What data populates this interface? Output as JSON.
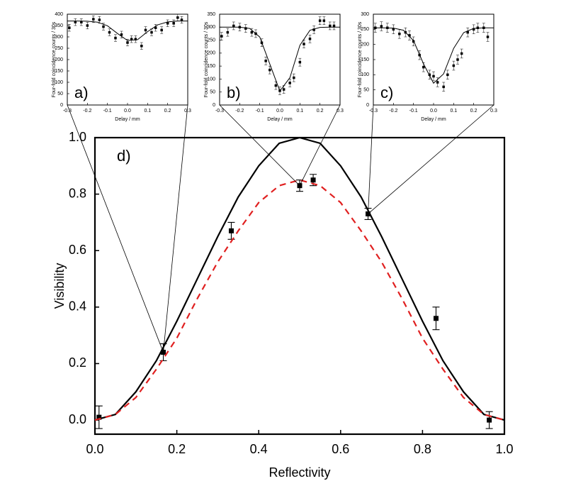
{
  "chart_data": [
    {
      "type": "scatter",
      "annotation": "d)",
      "x_label": "Reflectivity",
      "y_label": "Visibility",
      "xlim": [
        0,
        1
      ],
      "ylim": [
        -0.05,
        1
      ],
      "xticks": [
        {
          "value": 0,
          "label": "0.0"
        },
        0.2,
        0.4,
        0.6,
        0.8,
        {
          "value": 1,
          "label": "1.0"
        }
      ],
      "yticks": [
        {
          "value": 0,
          "label": "0.0"
        },
        0.2,
        0.4,
        0.6,
        0.8,
        {
          "value": 1,
          "label": "1.0"
        }
      ],
      "series": [
        {
          "type": "scatter",
          "color": "#000000",
          "x": [
            0.01,
            0.167,
            0.333,
            0.5,
            0.533,
            0.667,
            0.833,
            0.963
          ],
          "values": [
            0.01,
            0.24,
            0.67,
            0.83,
            0.85,
            0.73,
            0.36,
            0.0
          ],
          "errors": [
            0.04,
            0.03,
            0.03,
            0.02,
            0.02,
            0.02,
            0.04,
            0.03
          ]
        },
        {
          "type": "line",
          "color": "#000000",
          "x": [
            0,
            0.05,
            0.1,
            0.15,
            0.2,
            0.25,
            0.3,
            0.35,
            0.4,
            0.45,
            0.5,
            0.55,
            0.6,
            0.65,
            0.7,
            0.75,
            0.8,
            0.85,
            0.9,
            0.95,
            1
          ],
          "values": [
            0,
            0.02,
            0.1,
            0.21,
            0.35,
            0.5,
            0.65,
            0.79,
            0.9,
            0.98,
            1,
            0.98,
            0.9,
            0.79,
            0.65,
            0.5,
            0.35,
            0.21,
            0.1,
            0.02,
            0
          ]
        },
        {
          "type": "line",
          "color": "#e02020",
          "dash": true,
          "x": [
            0,
            0.05,
            0.1,
            0.15,
            0.2,
            0.25,
            0.3,
            0.35,
            0.4,
            0.45,
            0.5,
            0.55,
            0.6,
            0.65,
            0.7,
            0.75,
            0.8,
            0.85,
            0.9,
            0.95,
            1
          ],
          "values": [
            0,
            0.02,
            0.08,
            0.18,
            0.29,
            0.43,
            0.56,
            0.67,
            0.77,
            0.83,
            0.85,
            0.83,
            0.77,
            0.67,
            0.56,
            0.43,
            0.29,
            0.18,
            0.08,
            0.02,
            0
          ]
        }
      ]
    },
    {
      "type": "scatter",
      "annotation": "a)",
      "x_label": "Delay / mm",
      "y_label": "Four-fold coincidence counts / 30s",
      "xlim": [
        -0.3,
        0.3
      ],
      "ylim": [
        0,
        400
      ],
      "xticks": [
        -0.3,
        -0.2,
        -0.1,
        {
          "value": 0,
          "label": "0.0"
        },
        0.1,
        0.2,
        0.3
      ],
      "yticks": [
        0,
        50,
        100,
        150,
        200,
        250,
        300,
        350,
        400
      ],
      "series": [
        {
          "type": "scatter",
          "color": "#000000",
          "x": [
            -0.29,
            -0.26,
            -0.23,
            -0.2,
            -0.17,
            -0.14,
            -0.12,
            -0.09,
            -0.06,
            -0.03,
            0.0,
            0.02,
            0.04,
            0.07,
            0.09,
            0.12,
            0.14,
            0.17,
            0.2,
            0.23,
            0.25,
            0.27
          ],
          "values": [
            340,
            365,
            365,
            350,
            378,
            375,
            345,
            320,
            295,
            310,
            275,
            290,
            290,
            260,
            330,
            320,
            340,
            330,
            360,
            360,
            385,
            375
          ],
          "errors": [
            15,
            15,
            15,
            15,
            15,
            15,
            15,
            15,
            15,
            15,
            15,
            15,
            15,
            15,
            15,
            15,
            15,
            15,
            15,
            15,
            15,
            15
          ]
        },
        {
          "type": "line",
          "color": "#000000",
          "x": [
            -0.3,
            -0.25,
            -0.2,
            -0.15,
            -0.1,
            -0.05,
            0,
            0.05,
            0.1,
            0.15,
            0.2,
            0.25,
            0.3
          ],
          "values": [
            370,
            370,
            369,
            365,
            349,
            315,
            284,
            288,
            323,
            353,
            366,
            370,
            370
          ]
        }
      ]
    },
    {
      "type": "scatter",
      "annotation": "b)",
      "x_label": "Delay / mm",
      "y_label": "Four-fold coincidence counts / 30s",
      "xlim": [
        -0.3,
        0.3
      ],
      "ylim": [
        0,
        350
      ],
      "xticks": [
        -0.3,
        -0.2,
        -0.1,
        {
          "value": 0,
          "label": "0.0"
        },
        0.1,
        0.2,
        0.3
      ],
      "yticks": [
        0,
        50,
        100,
        150,
        200,
        250,
        300,
        350
      ],
      "series": [
        {
          "type": "scatter",
          "color": "#000000",
          "x": [
            -0.29,
            -0.26,
            -0.23,
            -0.2,
            -0.17,
            -0.14,
            -0.12,
            -0.09,
            -0.07,
            -0.05,
            -0.02,
            0.0,
            0.02,
            0.05,
            0.07,
            0.1,
            0.12,
            0.15,
            0.17,
            0.2,
            0.22,
            0.25,
            0.27
          ],
          "values": [
            265,
            280,
            305,
            300,
            295,
            280,
            275,
            240,
            170,
            135,
            75,
            55,
            60,
            85,
            105,
            165,
            235,
            255,
            290,
            325,
            325,
            305,
            305
          ],
          "errors": [
            15,
            15,
            15,
            15,
            15,
            15,
            15,
            15,
            15,
            15,
            15,
            15,
            15,
            15,
            15,
            15,
            15,
            15,
            15,
            15,
            15,
            15,
            15
          ]
        },
        {
          "type": "line",
          "color": "#000000",
          "x": [
            -0.3,
            -0.25,
            -0.2,
            -0.15,
            -0.1,
            -0.05,
            0,
            0.05,
            0.1,
            0.15,
            0.2,
            0.25,
            0.3
          ],
          "values": [
            300,
            300,
            300,
            295,
            262,
            158,
            54,
            105,
            230,
            288,
            299,
            300,
            300
          ]
        }
      ]
    },
    {
      "type": "scatter",
      "annotation": "c)",
      "x_label": "Delay / mm",
      "y_label": "Four-fold coincidence counts / 30s",
      "xlim": [
        -0.3,
        0.3
      ],
      "ylim": [
        0,
        300
      ],
      "xticks": [
        -0.3,
        -0.2,
        -0.1,
        {
          "value": 0,
          "label": "0.0"
        },
        0.1,
        0.2,
        0.3
      ],
      "yticks": [
        0,
        50,
        100,
        150,
        200,
        250,
        300
      ],
      "series": [
        {
          "type": "scatter",
          "color": "#000000",
          "x": [
            -0.29,
            -0.26,
            -0.23,
            -0.2,
            -0.17,
            -0.14,
            -0.12,
            -0.1,
            -0.07,
            -0.05,
            -0.02,
            0.0,
            0.02,
            0.05,
            0.07,
            0.1,
            0.12,
            0.14,
            0.17,
            0.2,
            0.22,
            0.25,
            0.27
          ],
          "values": [
            255,
            260,
            255,
            250,
            235,
            240,
            230,
            210,
            165,
            125,
            100,
            95,
            75,
            60,
            100,
            130,
            150,
            170,
            240,
            250,
            255,
            255,
            225
          ],
          "errors": [
            15,
            15,
            15,
            15,
            15,
            15,
            15,
            15,
            15,
            15,
            15,
            15,
            15,
            15,
            15,
            15,
            15,
            15,
            15,
            15,
            15,
            15,
            15
          ]
        },
        {
          "type": "line",
          "color": "#000000",
          "x": [
            -0.3,
            -0.25,
            -0.2,
            -0.15,
            -0.1,
            -0.05,
            0,
            0.05,
            0.1,
            0.15,
            0.2,
            0.25,
            0.3
          ],
          "values": [
            255,
            255,
            254,
            247,
            213,
            136,
            72,
            103,
            187,
            239,
            253,
            255,
            255
          ]
        }
      ]
    }
  ]
}
